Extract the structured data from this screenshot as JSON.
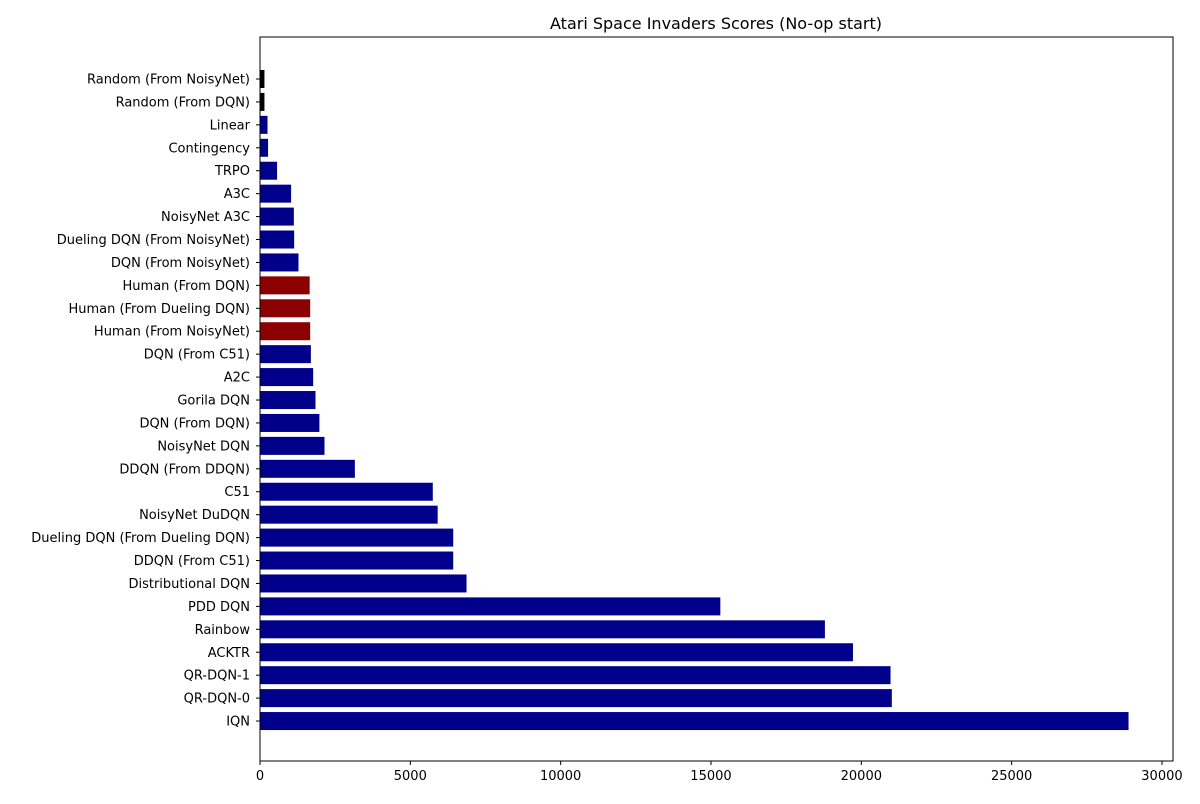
{
  "chart_data": {
    "type": "bar",
    "orientation": "horizontal",
    "title": "Atari Space Invaders Scores (No-op start)",
    "xlabel": "",
    "ylabel": "",
    "xlim": [
      0,
      30367
    ],
    "grid": false,
    "x_ticks": [
      0,
      5000,
      10000,
      15000,
      20000,
      25000,
      30000
    ],
    "colors": {
      "agent": "#00008b",
      "human": "#8b0000",
      "random": "#000000"
    },
    "categories": [
      "Random (From NoisyNet)",
      "Random (From DQN)",
      "Linear",
      "Contingency",
      "TRPO",
      "A3C",
      "NoisyNet A3C",
      "Dueling DQN (From NoisyNet)",
      "DQN (From NoisyNet)",
      "Human (From DQN)",
      "Human (From Dueling DQN)",
      "Human (From NoisyNet)",
      "DQN (From C51)",
      "A2C",
      "Gorila DQN",
      "DQN (From DQN)",
      "NoisyNet DQN",
      "DDQN (From DDQN)",
      "C51",
      "NoisyNet DuDQN",
      "Dueling DQN (From Dueling DQN)",
      "DDQN (From C51)",
      "Distributional DQN",
      "PDD DQN",
      "Rainbow",
      "ACKTR",
      "QR-DQN-1",
      "QR-DQN-0",
      "IQN"
    ],
    "values": [
      148,
      148,
      250,
      268,
      568,
      1034,
      1126,
      1136,
      1280,
      1652,
      1669,
      1669,
      1692,
      1768,
      1846,
      1976,
      2145,
      3155,
      5747,
      5909,
      6427,
      6427,
      6869,
      15311,
      18789,
      19723,
      20972,
      21015,
      28888
    ],
    "bar_kinds": [
      "random",
      "random",
      "agent",
      "agent",
      "agent",
      "agent",
      "agent",
      "agent",
      "agent",
      "human",
      "human",
      "human",
      "agent",
      "agent",
      "agent",
      "agent",
      "agent",
      "agent",
      "agent",
      "agent",
      "agent",
      "agent",
      "agent",
      "agent",
      "agent",
      "agent",
      "agent",
      "agent",
      "agent"
    ]
  }
}
